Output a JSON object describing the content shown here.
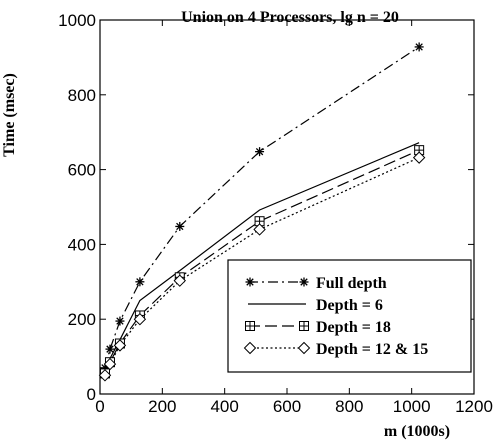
{
  "chart_data": {
    "type": "line",
    "title": "Union on 4 Processors, lg n = 20",
    "xlabel": "m (1000s)",
    "ylabel": "Time (msec)",
    "xlim": [
      0,
      1200
    ],
    "ylim": [
      0,
      1000
    ],
    "xticks": [
      0,
      200,
      400,
      600,
      800,
      1000,
      1200
    ],
    "yticks": [
      0,
      200,
      400,
      600,
      800,
      1000
    ],
    "grid": false,
    "legend_position": "bottom-right",
    "series": [
      {
        "name": "Full depth",
        "line_style": "dash-dot",
        "marker": "asterisk",
        "x": [
          16,
          32,
          64,
          128,
          256,
          512,
          1024
        ],
        "y": [
          70,
          120,
          195,
          300,
          448,
          648,
          928
        ]
      },
      {
        "name": "Depth = 6",
        "line_style": "solid",
        "marker": "none",
        "x": [
          16,
          32,
          64,
          128,
          256,
          512,
          1024
        ],
        "y": [
          62,
          95,
          145,
          250,
          330,
          492,
          672
        ]
      },
      {
        "name": "Depth = 18",
        "line_style": "dashed",
        "marker": "boxplus",
        "x": [
          16,
          32,
          64,
          128,
          256,
          512,
          1024
        ],
        "y": [
          55,
          85,
          135,
          210,
          312,
          462,
          652
        ]
      },
      {
        "name": "Depth = 12 & 15",
        "line_style": "dotted",
        "marker": "diamond",
        "x": [
          16,
          32,
          64,
          128,
          256,
          512,
          1024
        ],
        "y": [
          50,
          80,
          130,
          200,
          303,
          440,
          632
        ]
      }
    ]
  }
}
